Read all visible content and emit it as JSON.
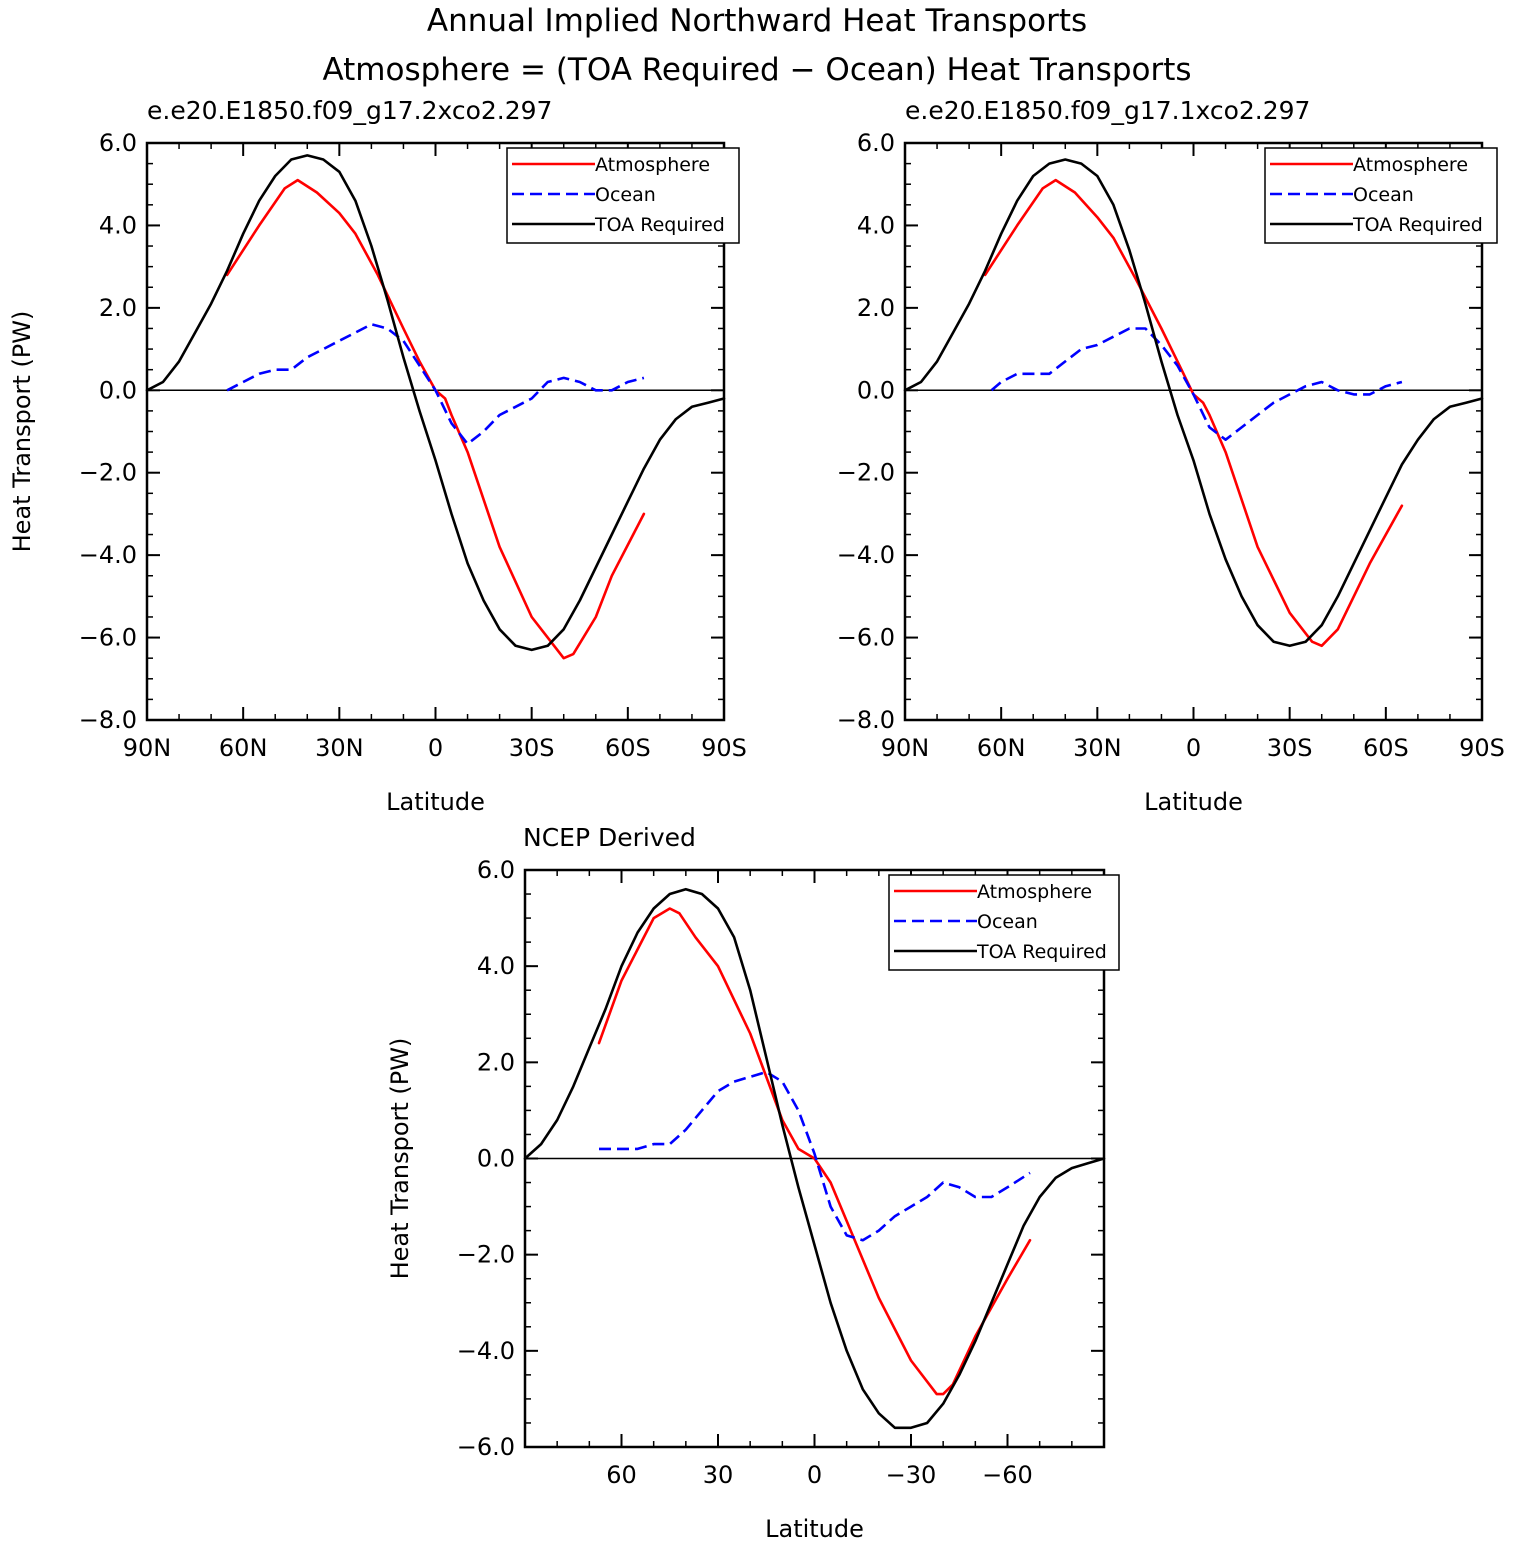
{
  "figure": {
    "title_line1": "Annual Implied Northward Heat Transports",
    "title_line2": "Atmosphere = (TOA Required − Ocean) Heat Transports"
  },
  "colors": {
    "atmosphere": "#ff0000",
    "ocean": "#0000ff",
    "toa": "#000000"
  },
  "chart_data": [
    {
      "type": "line",
      "title": "e.e20.E1850.f09_g17.2xco2.297",
      "xlabel": "Latitude",
      "ylabel": "Heat Transport (PW)",
      "xlim": [
        90,
        -90
      ],
      "ylim": [
        -8.0,
        6.0
      ],
      "yticks": [
        6.0,
        4.0,
        2.0,
        0.0,
        -2.0,
        -4.0,
        -6.0,
        -8.0
      ],
      "ytick_labels": [
        "6.0",
        "4.0",
        "2.0",
        "0.0",
        "−2.0",
        "−4.0",
        "−6.0",
        "−8.0"
      ],
      "xticks": [
        90,
        60,
        30,
        0,
        -30,
        -60,
        -90
      ],
      "xtick_labels": [
        "90N",
        "60N",
        "30N",
        "0",
        "30S",
        "60S",
        "90S"
      ],
      "legend": [
        "Atmosphere",
        "Ocean",
        "TOA Required"
      ],
      "legend_position": "top-right",
      "series": [
        {
          "name": "Atmosphere",
          "style": "solid",
          "x": [
            65,
            55,
            47,
            43,
            37,
            30,
            25,
            18,
            10,
            5,
            0,
            -3,
            -5,
            -10,
            -20,
            -30,
            -38,
            -40,
            -43,
            -50,
            -55,
            -65
          ],
          "y": [
            2.8,
            4.0,
            4.9,
            5.1,
            4.8,
            4.3,
            3.8,
            2.8,
            1.5,
            0.7,
            0.0,
            -0.2,
            -0.6,
            -1.5,
            -3.8,
            -5.5,
            -6.3,
            -6.5,
            -6.4,
            -5.5,
            -4.5,
            -3.0
          ]
        },
        {
          "name": "Ocean",
          "style": "dashed",
          "x": [
            65,
            60,
            55,
            50,
            45,
            40,
            35,
            30,
            25,
            20,
            15,
            10,
            5,
            0,
            -5,
            -10,
            -15,
            -20,
            -25,
            -30,
            -35,
            -40,
            -45,
            -50,
            -55,
            -60,
            -65
          ],
          "y": [
            0.0,
            0.2,
            0.4,
            0.5,
            0.5,
            0.8,
            1.0,
            1.2,
            1.4,
            1.6,
            1.5,
            1.2,
            0.6,
            0.0,
            -0.8,
            -1.3,
            -1.0,
            -0.6,
            -0.4,
            -0.2,
            0.2,
            0.3,
            0.2,
            0.0,
            0.0,
            0.2,
            0.3
          ]
        },
        {
          "name": "TOA Required",
          "style": "solid",
          "x": [
            90,
            85,
            80,
            75,
            70,
            65,
            60,
            55,
            50,
            45,
            40,
            35,
            30,
            25,
            20,
            15,
            10,
            5,
            0,
            -5,
            -10,
            -15,
            -20,
            -25,
            -30,
            -35,
            -40,
            -45,
            -50,
            -55,
            -60,
            -65,
            -70,
            -75,
            -80,
            -85,
            -90
          ],
          "y": [
            0.0,
            0.2,
            0.7,
            1.4,
            2.1,
            2.9,
            3.8,
            4.6,
            5.2,
            5.6,
            5.7,
            5.6,
            5.3,
            4.6,
            3.5,
            2.2,
            0.8,
            -0.5,
            -1.7,
            -3.0,
            -4.2,
            -5.1,
            -5.8,
            -6.2,
            -6.3,
            -6.2,
            -5.8,
            -5.1,
            -4.3,
            -3.5,
            -2.7,
            -1.9,
            -1.2,
            -0.7,
            -0.4,
            -0.3,
            -0.2
          ]
        }
      ]
    },
    {
      "type": "line",
      "title": "e.e20.E1850.f09_g17.1xco2.297",
      "xlabel": "Latitude",
      "ylabel": "",
      "xlim": [
        90,
        -90
      ],
      "ylim": [
        -8.0,
        6.0
      ],
      "yticks": [
        6.0,
        4.0,
        2.0,
        0.0,
        -2.0,
        -4.0,
        -6.0,
        -8.0
      ],
      "ytick_labels": [
        "6.0",
        "4.0",
        "2.0",
        "0.0",
        "−2.0",
        "−4.0",
        "−6.0",
        "−8.0"
      ],
      "xticks": [
        90,
        60,
        30,
        0,
        -30,
        -60,
        -90
      ],
      "xtick_labels": [
        "90N",
        "60N",
        "30N",
        "0",
        "30S",
        "60S",
        "90S"
      ],
      "legend": [
        "Atmosphere",
        "Ocean",
        "TOA Required"
      ],
      "legend_position": "top-right",
      "series": [
        {
          "name": "Atmosphere",
          "style": "solid",
          "x": [
            65,
            55,
            47,
            43,
            37,
            30,
            25,
            18,
            10,
            5,
            0,
            -3,
            -5,
            -10,
            -20,
            -30,
            -37,
            -40,
            -45,
            -50,
            -55,
            -65
          ],
          "y": [
            2.8,
            4.0,
            4.9,
            5.1,
            4.8,
            4.2,
            3.7,
            2.7,
            1.5,
            0.7,
            -0.1,
            -0.3,
            -0.6,
            -1.5,
            -3.8,
            -5.4,
            -6.1,
            -6.2,
            -5.8,
            -5.0,
            -4.2,
            -2.8
          ]
        },
        {
          "name": "Ocean",
          "style": "dashed",
          "x": [
            63,
            60,
            55,
            50,
            45,
            40,
            35,
            30,
            25,
            20,
            15,
            10,
            5,
            0,
            -5,
            -10,
            -15,
            -20,
            -25,
            -30,
            -35,
            -40,
            -45,
            -50,
            -55,
            -60,
            -65
          ],
          "y": [
            0.0,
            0.2,
            0.4,
            0.4,
            0.4,
            0.7,
            1.0,
            1.1,
            1.3,
            1.5,
            1.5,
            1.1,
            0.6,
            -0.1,
            -0.9,
            -1.2,
            -0.9,
            -0.6,
            -0.3,
            -0.1,
            0.1,
            0.2,
            0.0,
            -0.1,
            -0.1,
            0.1,
            0.2
          ]
        },
        {
          "name": "TOA Required",
          "style": "solid",
          "x": [
            90,
            85,
            80,
            75,
            70,
            65,
            60,
            55,
            50,
            45,
            40,
            35,
            30,
            25,
            20,
            15,
            10,
            5,
            0,
            -5,
            -10,
            -15,
            -20,
            -25,
            -30,
            -35,
            -40,
            -45,
            -50,
            -55,
            -60,
            -65,
            -70,
            -75,
            -80,
            -85,
            -90
          ],
          "y": [
            0.0,
            0.2,
            0.7,
            1.4,
            2.1,
            2.9,
            3.8,
            4.6,
            5.2,
            5.5,
            5.6,
            5.5,
            5.2,
            4.5,
            3.4,
            2.1,
            0.7,
            -0.6,
            -1.7,
            -3.0,
            -4.1,
            -5.0,
            -5.7,
            -6.1,
            -6.2,
            -6.1,
            -5.7,
            -5.0,
            -4.2,
            -3.4,
            -2.6,
            -1.8,
            -1.2,
            -0.7,
            -0.4,
            -0.3,
            -0.2
          ]
        }
      ]
    },
    {
      "type": "line",
      "title": "NCEP Derived",
      "xlabel": "Latitude",
      "ylabel": "Heat Transport (PW)",
      "xlim": [
        90,
        -90
      ],
      "ylim": [
        -6.0,
        6.0
      ],
      "yticks": [
        6.0,
        4.0,
        2.0,
        0.0,
        -2.0,
        -4.0,
        -6.0
      ],
      "ytick_labels": [
        "6.0",
        "4.0",
        "2.0",
        "0.0",
        "−2.0",
        "−4.0",
        "−6.0"
      ],
      "xticks": [
        60,
        30,
        0,
        -30,
        -60
      ],
      "xtick_labels": [
        "60",
        "30",
        "0",
        "−30",
        "−60"
      ],
      "legend": [
        "Atmosphere",
        "Ocean",
        "TOA Required"
      ],
      "legend_position": "top-right",
      "series": [
        {
          "name": "Atmosphere",
          "style": "solid",
          "x": [
            67,
            60,
            50,
            45,
            42,
            37,
            30,
            20,
            10,
            5,
            0,
            -5,
            -10,
            -20,
            -30,
            -38,
            -40,
            -43,
            -50,
            -60,
            -67
          ],
          "y": [
            2.4,
            3.7,
            5.0,
            5.2,
            5.1,
            4.6,
            4.0,
            2.6,
            0.8,
            0.2,
            0.0,
            -0.5,
            -1.3,
            -2.9,
            -4.2,
            -4.9,
            -4.9,
            -4.7,
            -3.7,
            -2.5,
            -1.7
          ]
        },
        {
          "name": "Ocean",
          "style": "dashed",
          "x": [
            67,
            60,
            55,
            50,
            45,
            40,
            35,
            30,
            25,
            20,
            15,
            10,
            5,
            0,
            -5,
            -10,
            -15,
            -20,
            -25,
            -30,
            -35,
            -40,
            -45,
            -50,
            -55,
            -60,
            -67
          ],
          "y": [
            0.2,
            0.2,
            0.2,
            0.3,
            0.3,
            0.6,
            1.0,
            1.4,
            1.6,
            1.7,
            1.8,
            1.6,
            1.0,
            0.1,
            -1.0,
            -1.6,
            -1.7,
            -1.5,
            -1.2,
            -1.0,
            -0.8,
            -0.5,
            -0.6,
            -0.8,
            -0.8,
            -0.6,
            -0.3
          ]
        },
        {
          "name": "TOA Required",
          "style": "solid",
          "x": [
            90,
            85,
            80,
            75,
            70,
            65,
            60,
            55,
            50,
            45,
            40,
            35,
            30,
            25,
            20,
            15,
            10,
            5,
            0,
            -5,
            -10,
            -15,
            -20,
            -25,
            -30,
            -35,
            -40,
            -45,
            -50,
            -55,
            -60,
            -65,
            -70,
            -75,
            -80,
            -85,
            -90
          ],
          "y": [
            0.0,
            0.3,
            0.8,
            1.5,
            2.3,
            3.1,
            4.0,
            4.7,
            5.2,
            5.5,
            5.6,
            5.5,
            5.2,
            4.6,
            3.5,
            2.1,
            0.7,
            -0.6,
            -1.8,
            -3.0,
            -4.0,
            -4.8,
            -5.3,
            -5.6,
            -5.6,
            -5.5,
            -5.1,
            -4.5,
            -3.8,
            -3.0,
            -2.2,
            -1.4,
            -0.8,
            -0.4,
            -0.2,
            -0.1,
            0.0
          ]
        }
      ]
    }
  ]
}
